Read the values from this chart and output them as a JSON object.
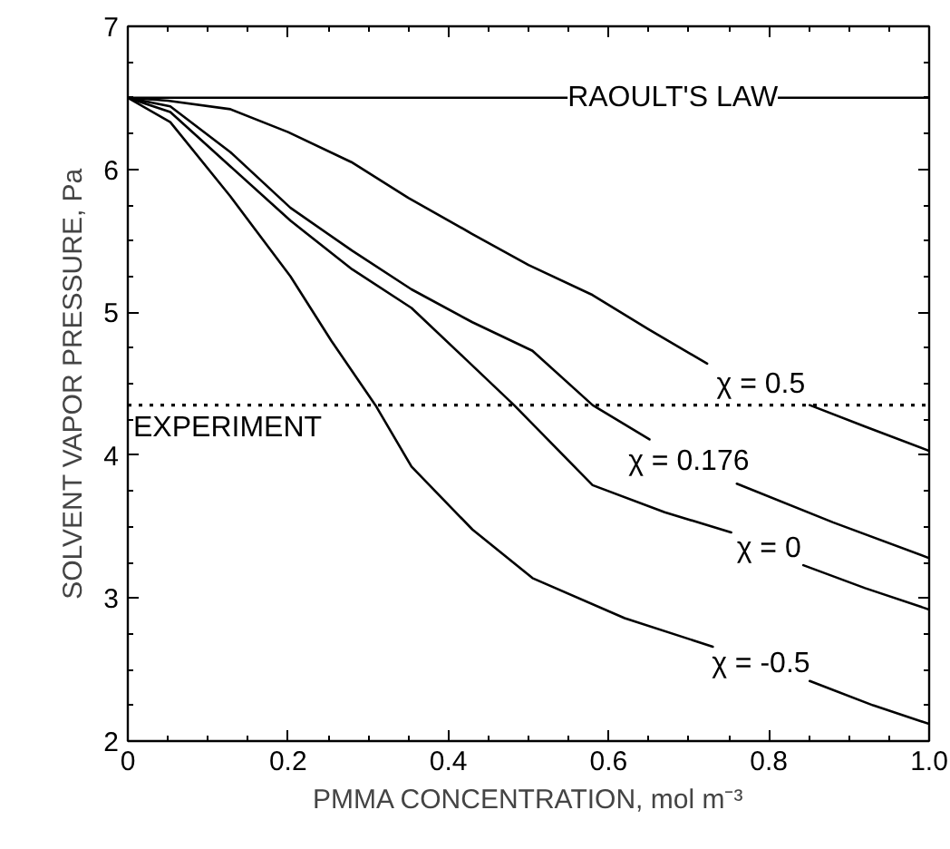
{
  "chart_data": {
    "type": "line",
    "xlabel": "PMMA CONCENTRATION, mol m⁻³",
    "ylabel": "SOLVENT VAPOR PRESSURE, Pa",
    "xlim": [
      0,
      1.0
    ],
    "ylim": [
      2,
      7
    ],
    "xticks": [
      0,
      0.2,
      0.4,
      0.6,
      0.8,
      {
        "value": 1.0,
        "label": "1.0"
      }
    ],
    "yticks": [
      2,
      3,
      4,
      5,
      6,
      7
    ],
    "grid": false,
    "marker": "none",
    "line_style": "solid",
    "series": [
      {
        "name": "χ = 0.5",
        "color": "#000000",
        "x": [
          0,
          0.05,
          0.128,
          0.2,
          0.279,
          0.35,
          0.429,
          0.5,
          0.58,
          0.65,
          0.723,
          0.79,
          0.851,
          0.92,
          1.0
        ],
        "values": [
          6.5,
          6.48,
          6.42,
          6.26,
          6.05,
          5.8,
          5.55,
          5.33,
          5.12,
          4.88,
          4.64,
          null,
          4.35,
          4.2,
          4.03
        ]
      },
      {
        "name": "χ = 0.176",
        "color": "#000000",
        "x": [
          0,
          0.053,
          0.128,
          0.203,
          0.28,
          0.354,
          0.43,
          0.505,
          0.58,
          0.651,
          0.7,
          0.76,
          0.88,
          1.0
        ],
        "values": [
          6.5,
          6.44,
          6.12,
          5.73,
          5.43,
          5.16,
          4.93,
          4.73,
          4.35,
          4.11,
          null,
          3.8,
          3.53,
          3.28
        ]
      },
      {
        "name": "χ = 0",
        "color": "#000000",
        "x": [
          0,
          0.053,
          0.128,
          0.203,
          0.28,
          0.354,
          0.42,
          0.482,
          0.58,
          0.67,
          0.753,
          0.8,
          0.843,
          0.92,
          1.0
        ],
        "values": [
          6.5,
          6.4,
          6.02,
          5.64,
          5.3,
          5.03,
          4.68,
          4.35,
          3.79,
          3.6,
          3.46,
          null,
          3.23,
          3.07,
          2.92
        ]
      },
      {
        "name": "χ = -0.5",
        "color": "#000000",
        "x": [
          0,
          0.053,
          0.128,
          0.203,
          0.254,
          0.309,
          0.354,
          0.43,
          0.505,
          0.62,
          0.73,
          0.79,
          0.851,
          0.93,
          1.0
        ],
        "values": [
          6.5,
          6.33,
          5.81,
          5.25,
          4.8,
          4.35,
          3.92,
          3.48,
          3.14,
          2.86,
          2.66,
          null,
          2.42,
          2.25,
          2.12
        ]
      }
    ],
    "ref_lines": [
      {
        "axis": "y",
        "value": 6.5,
        "label": "RAOULT'S LAW",
        "color": "#000000",
        "line_style": "solid"
      },
      {
        "axis": "y",
        "value": 4.35,
        "label": "EXPERIMENT",
        "color": "#000000",
        "line_style": "dotted"
      }
    ]
  }
}
